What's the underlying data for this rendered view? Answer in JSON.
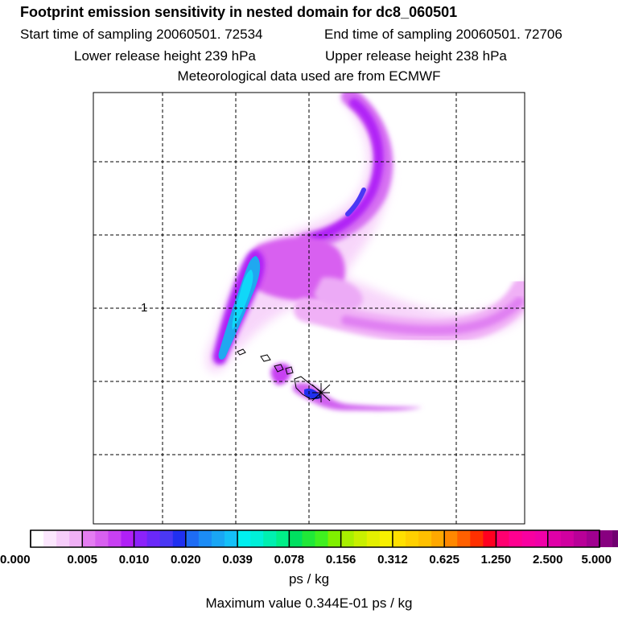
{
  "header": {
    "title": "Footprint emission sensitivity in nested domain for dc8_060501",
    "start": "Start time of sampling 20060501. 72534",
    "end": "End time of sampling 20060501. 72706",
    "lower": "Lower release height  239 hPa",
    "upper": "Upper release height  238 hPa",
    "met": "Meteorological data used are from ECMWF"
  },
  "map": {
    "receptor_label": "1",
    "plume_colors": {
      "very_light": "#f8d8fb",
      "light": "#f0b0f6",
      "mid": "#e070f0",
      "strong": "#c000f0",
      "purple": "#9b30ff",
      "blue": "#3a4cf0",
      "cyan": "#20a8f0",
      "bright_cyan": "#10d8f8"
    }
  },
  "colorbar": {
    "tick_labels": [
      "0.000",
      "0.005",
      "0.010",
      "0.020",
      "0.039",
      "0.078",
      "0.156",
      "0.312",
      "0.625",
      "1.250",
      "2.500",
      "5.000"
    ],
    "colors": [
      "#ffffff",
      "#fbe6fd",
      "#f6cdfa",
      "#f0b0f6",
      "#e47df2",
      "#d860f0",
      "#c840f2",
      "#b020f6",
      "#8c22fa",
      "#6a28f8",
      "#4a38f4",
      "#2030f0",
      "#1e6cf4",
      "#1c8cf6",
      "#1aa6f4",
      "#14c0f8",
      "#00f0f0",
      "#00f0d8",
      "#00f0b0",
      "#00f088",
      "#00e060",
      "#20e838",
      "#40f020",
      "#80f000",
      "#a8f000",
      "#c8f000",
      "#e4f000",
      "#f8f000",
      "#ffe000",
      "#ffd000",
      "#ffc000",
      "#ffa800",
      "#ff8800",
      "#ff6000",
      "#ff3000",
      "#ff0020",
      "#ff0070",
      "#ff0090",
      "#f800a0",
      "#f000a8",
      "#e000a8",
      "#d000a0",
      "#b80098",
      "#a00090",
      "#880080",
      "#700070",
      "#580060",
      "#400050"
    ],
    "unit": "ps / kg"
  },
  "footer": {
    "max_value": "Maximum value  0.344E-01 ps / kg"
  }
}
